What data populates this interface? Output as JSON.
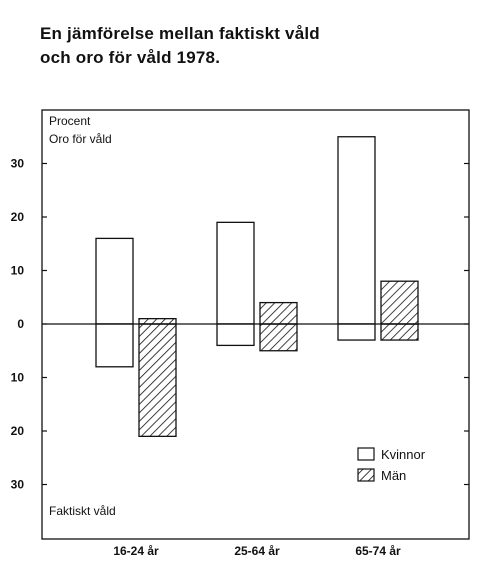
{
  "title_line1": "En jämförelse mellan faktiskt våld",
  "title_line2": "och oro för våld 1978.",
  "chart_data": {
    "type": "bar",
    "title": "En jämförelse mellan faktiskt våld och oro för våld 1978.",
    "unit_label": "Procent",
    "upper_label": "Oro för våld",
    "lower_label": "Faktiskt våld",
    "categories": [
      "16-24 år",
      "25-64 år",
      "65-74 år"
    ],
    "series": [
      {
        "name": "Kvinnor",
        "oro": [
          16,
          19,
          35
        ],
        "faktiskt_vald": [
          8,
          4,
          3
        ]
      },
      {
        "name": "Män",
        "oro": [
          1,
          4,
          8
        ],
        "faktiskt_vald": [
          21,
          5,
          3
        ]
      }
    ],
    "yticks_up": [
      "10",
      "20",
      "30"
    ],
    "yticks_down": [
      "10",
      "20",
      "30"
    ],
    "zero_label": "0",
    "ylim": [
      -40,
      40
    ],
    "legend_position": "bottom-right"
  }
}
